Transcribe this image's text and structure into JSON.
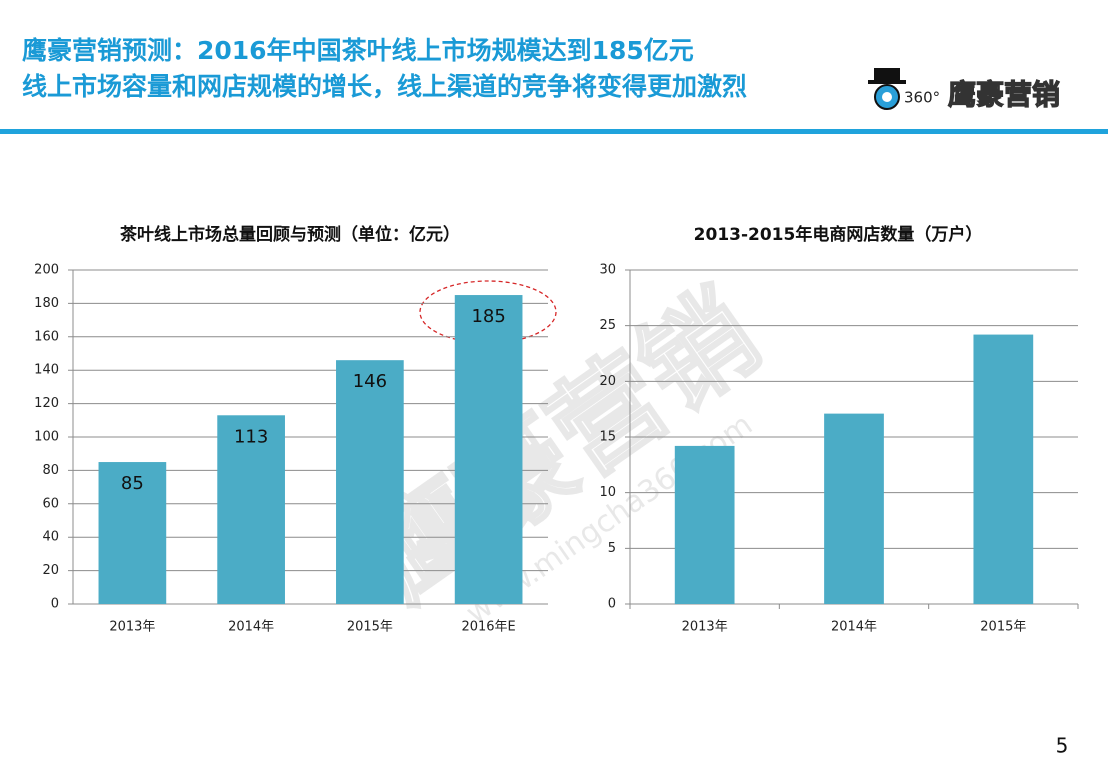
{
  "header": {
    "line1": "鹰豪营销预测：2016年中国茶叶线上市场规模达到185亿元",
    "line2": "线上市场容量和网店规模的增长，线上渠道的竞争将变得更加激烈"
  },
  "logo": {
    "mark": "360°",
    "brand": "鹰豪营销"
  },
  "watermark": {
    "brand": "鹰豪营销",
    "url": "www.mingcha360.com"
  },
  "page_number": "5",
  "chart_data": [
    {
      "type": "bar",
      "title": "茶叶线上市场总量回顾与预测（单位：亿元）",
      "categories": [
        "2013年",
        "2014年",
        "2015年",
        "2016年E"
      ],
      "values": [
        85,
        113,
        146,
        185
      ],
      "show_values": true,
      "color": "#4bacc6",
      "ylim": [
        0,
        200
      ],
      "yticks": [
        0,
        20,
        40,
        60,
        80,
        100,
        120,
        140,
        160,
        180,
        200
      ],
      "grid": true
    },
    {
      "type": "bar",
      "title": "2013-2015年电商网店数量（万户）",
      "categories": [
        "2013年",
        "2014年",
        "2015年"
      ],
      "values": [
        14.2,
        17.1,
        24.2
      ],
      "show_values": false,
      "color": "#4bacc6",
      "ylim": [
        0,
        30
      ],
      "yticks": [
        0,
        5,
        10,
        15,
        20,
        25,
        30
      ],
      "grid": true
    }
  ]
}
